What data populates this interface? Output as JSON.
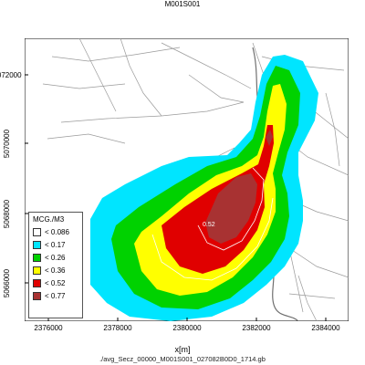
{
  "title": "M001S001",
  "x_label": "x[m]",
  "caption": "./avg_Secz_00000_M001S001_027082B0D0_1714.gb",
  "x_ticks": [
    "2376000",
    "2378000",
    "2380000",
    "2382000",
    "2384000"
  ],
  "y_ticks": [
    "5072000",
    "5070000",
    "5068000",
    "5066000"
  ],
  "legend": {
    "title": "MCG./M3",
    "items": [
      {
        "label": "< 0.086",
        "color": "#ffffff"
      },
      {
        "label": "< 0.17",
        "color": "#00e5ff"
      },
      {
        "label": "< 0.26",
        "color": "#00d200"
      },
      {
        "label": "< 0.36",
        "color": "#ffff00"
      },
      {
        "label": "< 0.52",
        "color": "#e00000"
      },
      {
        "label": "< 0.77",
        "color": "#a83232"
      }
    ]
  },
  "contour_label": "0.52"
}
